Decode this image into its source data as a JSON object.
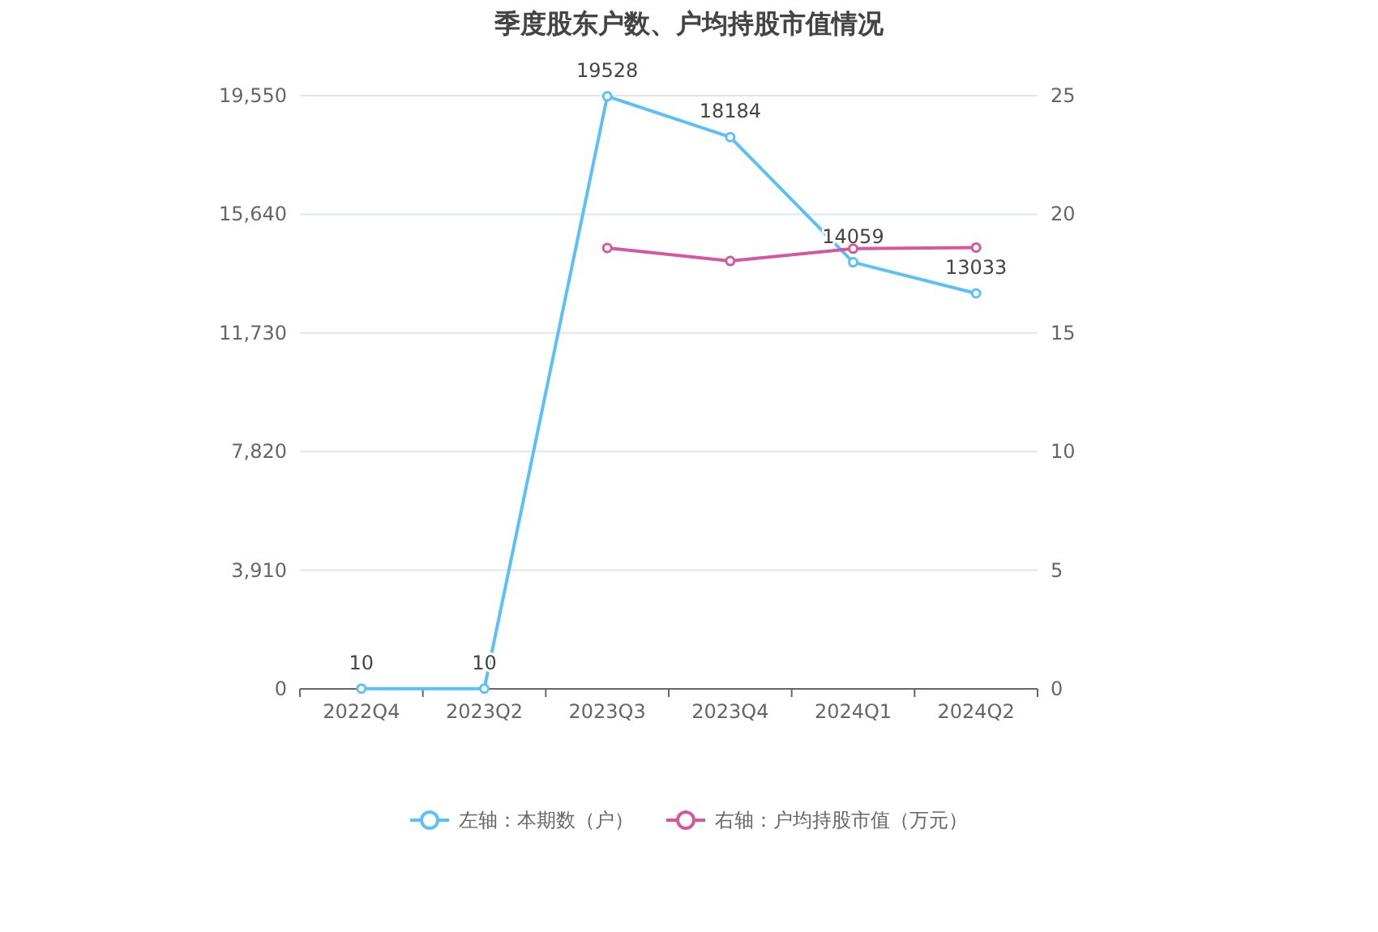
{
  "chart_data": {
    "type": "line",
    "title": "季度股东户数、户均持股市值情况",
    "categories": [
      "2022Q4",
      "2023Q2",
      "2023Q3",
      "2023Q4",
      "2024Q1",
      "2024Q2"
    ],
    "series": [
      {
        "name": "左轴：本期数（户）",
        "color": "#5bc0f8",
        "values": [
          10,
          10,
          19528,
          18184,
          14059,
          13033
        ],
        "value_labels": [
          "10",
          "10",
          "19528",
          "18184",
          "14059",
          "13033"
        ]
      },
      {
        "name": "右轴：户均持股市值（万元）",
        "color": "#d4579f",
        "axis": "y2",
        "values": [
          null,
          null,
          18.58,
          18.03,
          18.55,
          18.6
        ]
      }
    ],
    "ylim": [
      0,
      19550
    ],
    "yticks": [
      0,
      {
        "value": 3910,
        "label": "3,910"
      },
      {
        "value": 7820,
        "label": "7,820"
      },
      {
        "value": 11730,
        "label": "11,730"
      },
      {
        "value": 15640,
        "label": "15,640"
      },
      {
        "value": 19550,
        "label": "19,550"
      }
    ],
    "y2lim": [
      0,
      25
    ],
    "y2ticks": [
      0,
      5,
      10,
      15,
      20,
      25
    ],
    "grid": "y",
    "legend": "bottom",
    "marker": "circle",
    "line_style": "solid"
  }
}
